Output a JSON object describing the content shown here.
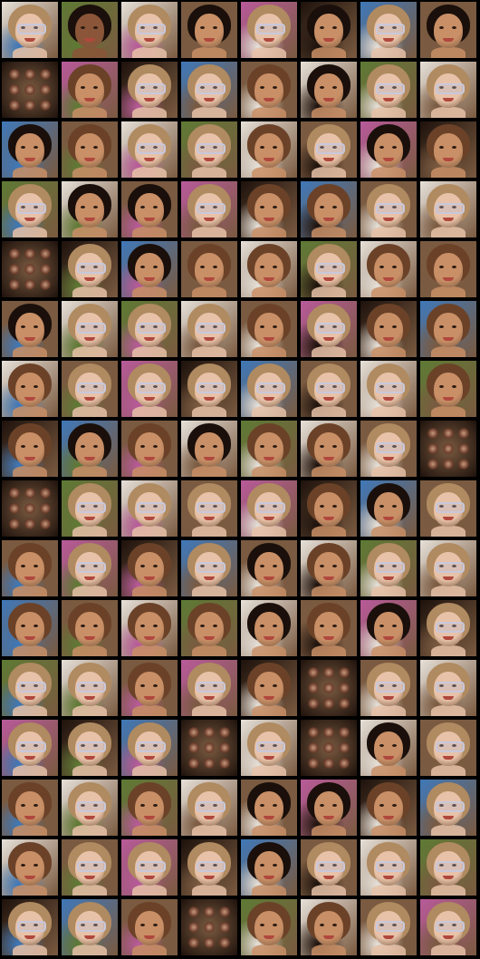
{
  "grid": {
    "rows": 16,
    "cols": 8,
    "background_color": "#000000"
  },
  "palette": {
    "light_skin": "#e8c2a8",
    "tan_skin": "#c98f66",
    "dark_skin": "#8a5538",
    "blonde_hair": "#b08a60",
    "brown_hair": "#6b4228",
    "black_hair": "#1a0f0a",
    "bg_brown": "#7a5a40",
    "bg_blue": "#3f78b8",
    "bg_green": "#5e7a34",
    "bg_white": "#e6e0d8",
    "bg_pink": "#b85a9a",
    "bg_dark": "#1e120c",
    "glasses_tint": "#c8c8dc",
    "mouth": "#b0483e"
  },
  "tiles": [
    "fg",
    "db",
    "fg",
    "bf",
    "fg",
    "bf",
    "fg",
    "bf",
    "p",
    "fb",
    "fg",
    "fg",
    "fb",
    "bf",
    "fg",
    "fg",
    "bf",
    "fb",
    "fg",
    "fg",
    "fb",
    "fg",
    "bf",
    "fb",
    "fg",
    "bf",
    "bf",
    "fg",
    "fb",
    "fb",
    "fg",
    "fg",
    "p",
    "fg",
    "bf",
    "fb",
    "fb",
    "fg",
    "fb",
    "fb",
    "bf",
    "fg",
    "fg",
    "fg",
    "fb",
    "fg",
    "fb",
    "fb",
    "fb",
    "fg",
    "fg",
    "fg",
    "fg",
    "fg",
    "fg",
    "fb",
    "fb",
    "bf",
    "fb",
    "bf",
    "fb",
    "fb",
    "fg",
    "p",
    "p",
    "fg",
    "fg",
    "fg",
    "fg",
    "fb",
    "bf",
    "fg",
    "fb",
    "fg",
    "fb",
    "fg",
    "bf",
    "fb",
    "fg",
    "fg",
    "fb",
    "fb",
    "fb",
    "fb",
    "bf",
    "fb",
    "bf",
    "fg",
    "fg",
    "fg",
    "fb",
    "fg",
    "fb",
    "p",
    "fg",
    "fg",
    "fg",
    "fg",
    "fg",
    "p",
    "fg",
    "p",
    "bf",
    "fg",
    "fb",
    "fg",
    "fb",
    "fg",
    "bf",
    "bf",
    "fb",
    "fg",
    "fb",
    "fg",
    "fg",
    "fg",
    "bf",
    "fg",
    "fg",
    "fg",
    "fg",
    "fg",
    "fb",
    "p",
    "fb",
    "fb",
    "fg",
    "fg"
  ],
  "tile_variants": {
    "fg": {
      "icon": "face-with-glasses-icon",
      "skin": "light_skin",
      "hair": "blonde_hair",
      "glasses": true
    },
    "fb": {
      "icon": "face-icon",
      "skin": "tan_skin",
      "hair": "brown_hair",
      "glasses": false
    },
    "bf": {
      "icon": "face-dark-hair-icon",
      "skin": "tan_skin",
      "hair": "black_hair",
      "glasses": false
    },
    "db": {
      "icon": "dark-face-icon",
      "skin": "dark_skin",
      "hair": "black_hair",
      "glasses": false
    },
    "p": {
      "icon": "dot-pattern-icon",
      "skin": "dark_skin",
      "hair": "black_hair",
      "glasses": false
    }
  },
  "backgrounds": [
    "bg_white",
    "bg_brown",
    "bg_blue",
    "bg_green",
    "bg_pink",
    "bg_brown",
    "bg_white",
    "bg_dark"
  ]
}
